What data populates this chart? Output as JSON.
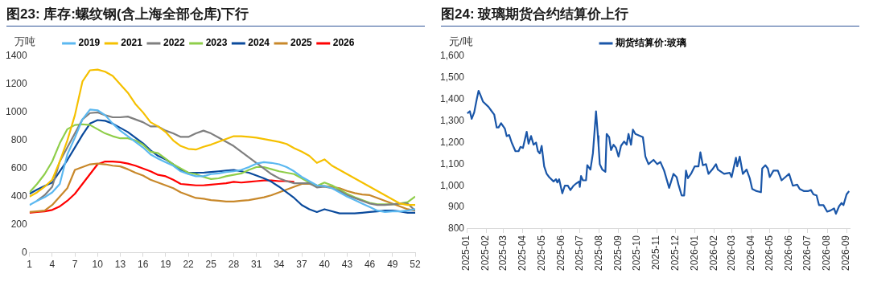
{
  "chart_data": [
    {
      "type": "line",
      "title": "图23: 库存:螺纹钢(含上海全部仓库)下行",
      "ylabel": "万吨",
      "legend": "top",
      "grid": false,
      "x": [
        1,
        2,
        3,
        4,
        5,
        6,
        7,
        8,
        9,
        10,
        11,
        12,
        13,
        14,
        15,
        16,
        17,
        18,
        19,
        20,
        21,
        22,
        23,
        24,
        25,
        26,
        27,
        28,
        29,
        30,
        31,
        32,
        33,
        34,
        35,
        36,
        37,
        38,
        39,
        40,
        41,
        42,
        43,
        44,
        45,
        46,
        47,
        48,
        49,
        50,
        51,
        52
      ],
      "xlim": [
        1,
        52
      ],
      "xticks": [
        1,
        4,
        7,
        10,
        13,
        16,
        19,
        22,
        25,
        28,
        31,
        34,
        37,
        40,
        43,
        46,
        49,
        52
      ],
      "ylim": [
        0,
        1400
      ],
      "yticks": [
        0,
        200,
        400,
        600,
        800,
        1000,
        1200,
        1400
      ],
      "series": [
        {
          "name": "2019",
          "color": "#5bb8f0",
          "values": [
            340,
            370,
            395,
            430,
            490,
            700,
            820,
            950,
            1020,
            1015,
            980,
            920,
            870,
            830,
            790,
            750,
            700,
            670,
            645,
            620,
            580,
            560,
            545,
            545,
            560,
            565,
            575,
            580,
            590,
            610,
            635,
            645,
            640,
            630,
            610,
            580,
            540,
            510,
            480,
            475,
            460,
            430,
            400,
            375,
            350,
            325,
            300,
            290,
            295,
            295,
            300,
            310
          ]
        },
        {
          "name": "2021",
          "color": "#f5c000",
          "values": [
            400,
            430,
            470,
            520,
            650,
            800,
            980,
            1220,
            1300,
            1305,
            1290,
            1260,
            1200,
            1140,
            1060,
            1000,
            930,
            900,
            860,
            800,
            760,
            740,
            735,
            755,
            770,
            790,
            810,
            830,
            830,
            825,
            820,
            810,
            800,
            790,
            775,
            745,
            720,
            690,
            640,
            665,
            620,
            590,
            560,
            530,
            500,
            470,
            440,
            410,
            380,
            350,
            340,
            340
          ]
        },
        {
          "name": "2022",
          "color": "#7f7f7f",
          "values": [
            null,
            370,
            410,
            470,
            650,
            750,
            850,
            950,
            995,
            1000,
            980,
            965,
            965,
            970,
            950,
            930,
            900,
            900,
            870,
            850,
            825,
            825,
            850,
            870,
            850,
            820,
            790,
            760,
            720,
            680,
            640,
            600,
            560,
            530,
            510,
            495,
            495,
            495,
            465,
            470,
            460,
            440,
            410,
            390,
            370,
            350,
            340,
            340,
            345,
            350,
            350,
            300
          ]
        },
        {
          "name": "2023",
          "color": "#8fce4a",
          "values": [
            430,
            490,
            560,
            650,
            780,
            880,
            910,
            915,
            910,
            880,
            850,
            830,
            815,
            815,
            800,
            770,
            720,
            710,
            670,
            630,
            600,
            570,
            560,
            540,
            525,
            530,
            545,
            555,
            565,
            590,
            610,
            610,
            595,
            580,
            570,
            560,
            530,
            500,
            475,
            500,
            480,
            450,
            420,
            395,
            375,
            355,
            345,
            345,
            345,
            350,
            360,
            400
          ]
        },
        {
          "name": "2024",
          "color": "#0a4a9c",
          "values": [
            420,
            450,
            475,
            500,
            580,
            660,
            750,
            840,
            920,
            945,
            940,
            920,
            890,
            860,
            820,
            780,
            730,
            690,
            665,
            630,
            590,
            570,
            570,
            570,
            575,
            580,
            585,
            590,
            580,
            570,
            550,
            530,
            505,
            470,
            430,
            390,
            340,
            310,
            290,
            310,
            295,
            280,
            280,
            280,
            285,
            290,
            295,
            300,
            300,
            295,
            285,
            285
          ]
        },
        {
          "name": "2025",
          "color": "#c8882a",
          "values": [
            290,
            295,
            300,
            340,
            400,
            460,
            590,
            610,
            630,
            635,
            630,
            620,
            615,
            595,
            570,
            550,
            520,
            500,
            480,
            460,
            430,
            410,
            390,
            385,
            375,
            370,
            365,
            365,
            370,
            375,
            385,
            395,
            410,
            430,
            450,
            470,
            490,
            490,
            480,
            475,
            470,
            460,
            440,
            425,
            415,
            410,
            390,
            370,
            350,
            330,
            310,
            300
          ]
        },
        {
          "name": "2026",
          "color": "#ff0000",
          "values": [
            285,
            290,
            295,
            305,
            330,
            370,
            420,
            490,
            560,
            630,
            650,
            650,
            645,
            635,
            620,
            600,
            580,
            555,
            545,
            520,
            490,
            485,
            480,
            480,
            485,
            490,
            495,
            505,
            500,
            505,
            510,
            515,
            515,
            510,
            510,
            505,
            null,
            null,
            null,
            null,
            null,
            null,
            null,
            null,
            null,
            null,
            null,
            null,
            null,
            null,
            null,
            null
          ]
        }
      ]
    },
    {
      "type": "line",
      "title": "图24: 玻璃期货合约结算价上行",
      "ylabel": "元/吨",
      "legend": "top",
      "grid": false,
      "xlim": [
        "2025-01-01",
        "2026-09-06"
      ],
      "xticks": [
        "2025-01",
        "2025-02",
        "2025-03",
        "2025-04",
        "2025-05",
        "2025-06",
        "2025-07",
        "2025-08",
        "2025-09",
        "2025-10",
        "2025-11",
        "2025-12",
        "2026-01",
        "2026-02",
        "2026-03",
        "2026-04",
        "2026-05",
        "2026-06",
        "2026-07",
        "2026-08",
        "2026-09"
      ],
      "ylim": [
        800,
        1600
      ],
      "yticks": [
        800,
        900,
        {
          "value": 1000,
          "label": "1,000"
        },
        {
          "value": 1100,
          "label": "1,100"
        },
        {
          "value": 1200,
          "label": "1,200"
        },
        {
          "value": 1300,
          "label": "1,300"
        },
        {
          "value": 1400,
          "label": "1,400"
        },
        {
          "value": 1500,
          "label": "1,500"
        },
        {
          "value": 1600,
          "label": "1,600"
        }
      ],
      "x": [
        "2025-01-02",
        "2025-01-06",
        "2025-01-09",
        "2025-01-13",
        "2025-01-17",
        "2025-01-20",
        "2025-01-23",
        "2025-01-27",
        "2025-02-05",
        "2025-02-10",
        "2025-02-14",
        "2025-02-18",
        "2025-02-21",
        "2025-02-25",
        "2025-03-03",
        "2025-03-06",
        "2025-03-10",
        "2025-03-14",
        "2025-03-20",
        "2025-03-25",
        "2025-03-28",
        "2025-04-01",
        "2025-04-07",
        "2025-04-10",
        "2025-04-14",
        "2025-04-18",
        "2025-04-22",
        "2025-04-25",
        "2025-04-28",
        "2025-05-01",
        "2025-05-05",
        "2025-05-09",
        "2025-05-13",
        "2025-05-20",
        "2025-05-24",
        "2025-05-26",
        "2025-05-29",
        "2025-06-03",
        "2025-06-07",
        "2025-06-12",
        "2025-06-16",
        "2025-06-21",
        "2025-06-25",
        "2025-06-30",
        "2025-07-01",
        "2025-07-03",
        "2025-07-06",
        "2025-07-11",
        "2025-07-13",
        "2025-07-18",
        "2025-07-22",
        "2025-07-27",
        "2025-07-30",
        "2025-07-31",
        "2025-08-02",
        "2025-08-06",
        "2025-08-11",
        "2025-08-13",
        "2025-08-17",
        "2025-08-20",
        "2025-08-24",
        "2025-08-28",
        "2025-09-01",
        "2025-09-05",
        "2025-09-10",
        "2025-09-14",
        "2025-09-17",
        "2025-09-21",
        "2025-09-24",
        "2025-09-28",
        "2025-10-10",
        "2025-10-14",
        "2025-10-19",
        "2025-10-27",
        "2025-11-02",
        "2025-11-07",
        "2025-11-13",
        "2025-11-21",
        "2025-11-28",
        "2025-12-03",
        "2025-12-06",
        "2025-12-11",
        "2025-12-15",
        "2025-12-18",
        "2025-12-21",
        "2025-12-26",
        "2026-01-01",
        "2026-01-07",
        "2026-01-10",
        "2026-01-14",
        "2026-01-19",
        "2026-01-23",
        "2026-01-29",
        "2026-02-04",
        "2026-02-07",
        "2026-02-17",
        "2026-02-26",
        "2026-03-01",
        "2026-03-08",
        "2026-03-10",
        "2026-03-14",
        "2026-03-19",
        "2026-03-25",
        "2026-03-30",
        "2026-04-03",
        "2026-04-10",
        "2026-04-17",
        "2026-04-19",
        "2026-04-24",
        "2026-04-28",
        "2026-05-01",
        "2026-05-07",
        "2026-05-14",
        "2026-05-20",
        "2026-05-26",
        "2026-06-01",
        "2026-06-07",
        "2026-06-14",
        "2026-06-18",
        "2026-06-25",
        "2026-07-01",
        "2026-07-06",
        "2026-07-10",
        "2026-07-15",
        "2026-07-19",
        "2026-07-26",
        "2026-08-01",
        "2026-08-06",
        "2026-08-12",
        "2026-08-15",
        "2026-08-20",
        "2026-08-24",
        "2026-08-27",
        "2026-09-01",
        "2026-09-05"
      ],
      "series": [
        {
          "name": "期货结算价:玻璃",
          "color": "#1a56a8",
          "values": [
            1335,
            1345,
            1310,
            1340,
            1400,
            1440,
            1420,
            1390,
            1365,
            1345,
            1330,
            1270,
            1270,
            1290,
            1265,
            1230,
            1235,
            1200,
            1160,
            1160,
            1180,
            1175,
            1250,
            1195,
            1230,
            1190,
            1200,
            1160,
            1150,
            1185,
            1090,
            1055,
            1040,
            1020,
            1030,
            1015,
            1030,
            965,
            1000,
            1000,
            980,
            1000,
            1010,
            1020,
            995,
            1045,
            1025,
            1025,
            1095,
            1075,
            1150,
            1345,
            1230,
            1190,
            1100,
            1075,
            1065,
            1240,
            1225,
            1165,
            1190,
            1175,
            1135,
            1185,
            1205,
            1190,
            1240,
            1190,
            1260,
            1240,
            1225,
            1135,
            1100,
            1120,
            1100,
            1110,
            1070,
            990,
            1055,
            1040,
            1005,
            955,
            955,
            1070,
            1035,
            1055,
            1090,
            1090,
            1155,
            1095,
            1100,
            1055,
            1075,
            1100,
            1075,
            1055,
            1060,
            1040,
            1130,
            1090,
            1135,
            1055,
            1075,
            1035,
            985,
            975,
            970,
            1080,
            1095,
            1080,
            1040,
            1070,
            1070,
            1025,
            1040,
            1055,
            1000,
            1005,
            985,
            975,
            975,
            980,
            960,
            955,
            910,
            910,
            880,
            885,
            895,
            870,
            905,
            920,
            910,
            960,
            975
          ]
        }
      ]
    }
  ]
}
